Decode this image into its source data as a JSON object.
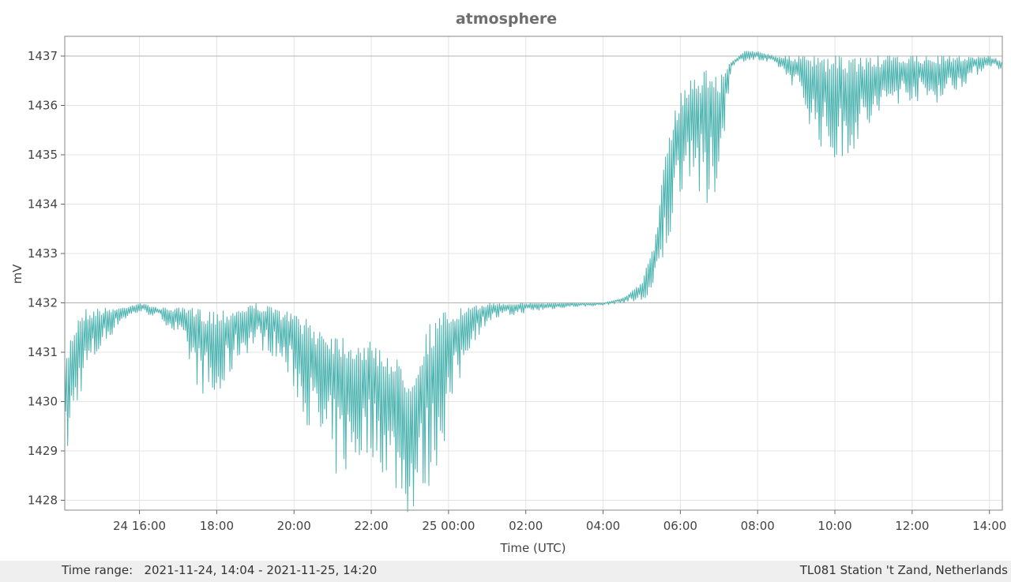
{
  "chart_data": {
    "type": "line",
    "title": "atmosphere",
    "xlabel": "Time (UTC)",
    "ylabel": "mV",
    "x_range": [
      "2021-11-24 14:04",
      "2021-11-25 14:20"
    ],
    "ylim": [
      1427.8,
      1437.4
    ],
    "grid": true,
    "line_color": "#4cb3b0",
    "x_ticks": [
      {
        "label": "24 16:00",
        "time": "2021-11-24 16:00"
      },
      {
        "label": "18:00",
        "time": "2021-11-24 18:00"
      },
      {
        "label": "20:00",
        "time": "2021-11-24 20:00"
      },
      {
        "label": "22:00",
        "time": "2021-11-24 22:00"
      },
      {
        "label": "25 00:00",
        "time": "2021-11-25 00:00"
      },
      {
        "label": "02:00",
        "time": "2021-11-25 02:00"
      },
      {
        "label": "04:00",
        "time": "2021-11-25 04:00"
      },
      {
        "label": "06:00",
        "time": "2021-11-25 06:00"
      },
      {
        "label": "08:00",
        "time": "2021-11-25 08:00"
      },
      {
        "label": "10:00",
        "time": "2021-11-25 10:00"
      },
      {
        "label": "12:00",
        "time": "2021-11-25 12:00"
      },
      {
        "label": "14:00",
        "time": "2021-11-25 14:00"
      }
    ],
    "y_ticks": [
      {
        "label": "1428",
        "value": 1428
      },
      {
        "label": "1429",
        "value": 1429
      },
      {
        "label": "1430",
        "value": 1430
      },
      {
        "label": "1431",
        "value": 1431
      },
      {
        "label": "1432",
        "value": 1432
      },
      {
        "label": "1433",
        "value": 1433
      },
      {
        "label": "1434",
        "value": 1434
      },
      {
        "label": "1435",
        "value": 1435
      },
      {
        "label": "1436",
        "value": 1436
      },
      {
        "label": "1437",
        "value": 1437
      }
    ],
    "reference_lines": [
      1432,
      1437
    ],
    "series": [
      {
        "envelope_times": [
          "2021-11-24 14:04",
          "2021-11-24 14:15",
          "2021-11-24 14:30",
          "2021-11-24 15:00",
          "2021-11-24 15:30",
          "2021-11-24 16:00",
          "2021-11-24 16:30",
          "2021-11-24 17:00",
          "2021-11-24 17:30",
          "2021-11-24 18:00",
          "2021-11-24 18:30",
          "2021-11-24 19:00",
          "2021-11-24 19:30",
          "2021-11-24 20:00",
          "2021-11-24 20:30",
          "2021-11-24 21:00",
          "2021-11-24 21:30",
          "2021-11-24 22:00",
          "2021-11-24 22:30",
          "2021-11-24 23:00",
          "2021-11-24 23:30",
          "2021-11-25 00:00",
          "2021-11-25 00:30",
          "2021-11-25 01:00",
          "2021-11-25 02:00",
          "2021-11-25 03:00",
          "2021-11-25 04:00",
          "2021-11-25 04:30",
          "2021-11-25 05:00",
          "2021-11-25 05:20",
          "2021-11-25 05:40",
          "2021-11-25 06:00",
          "2021-11-25 06:20",
          "2021-11-25 06:40",
          "2021-11-25 07:00",
          "2021-11-25 07:20",
          "2021-11-25 07:40",
          "2021-11-25 08:00",
          "2021-11-25 08:30",
          "2021-11-25 09:00",
          "2021-11-25 09:30",
          "2021-11-25 10:00",
          "2021-11-25 10:30",
          "2021-11-25 11:00",
          "2021-11-25 11:30",
          "2021-11-25 12:00",
          "2021-11-25 12:30",
          "2021-11-25 13:00",
          "2021-11-25 13:30",
          "2021-11-25 14:00",
          "2021-11-25 14:20"
        ],
        "envelope_upper": [
          1430.8,
          1431.5,
          1431.9,
          1431.9,
          1431.9,
          1432.0,
          1431.9,
          1431.9,
          1431.9,
          1431.9,
          1431.9,
          1432.0,
          1431.9,
          1431.8,
          1431.6,
          1431.5,
          1431.3,
          1431.2,
          1431.0,
          1430.6,
          1431.6,
          1431.9,
          1431.9,
          1432.0,
          1432.0,
          1432.0,
          1432.0,
          1432.1,
          1432.4,
          1433.3,
          1435.3,
          1436.3,
          1436.6,
          1436.8,
          1436.6,
          1436.9,
          1437.1,
          1437.1,
          1437.0,
          1437.0,
          1437.0,
          1437.0,
          1437.0,
          1437.0,
          1437.0,
          1437.0,
          1437.0,
          1437.0,
          1437.0,
          1437.0,
          1436.9
        ],
        "envelope_lower": [
          1428.6,
          1429.2,
          1430.2,
          1431.0,
          1431.6,
          1431.8,
          1431.7,
          1431.3,
          1430.3,
          1429.7,
          1430.8,
          1431.1,
          1430.9,
          1430.2,
          1429.2,
          1428.4,
          1428.5,
          1428.9,
          1428.3,
          1427.6,
          1428.2,
          1429.4,
          1431.0,
          1431.6,
          1431.8,
          1431.9,
          1431.95,
          1432.0,
          1432.0,
          1432.0,
          1433.0,
          1434.2,
          1434.7,
          1433.3,
          1434.5,
          1436.8,
          1436.9,
          1436.9,
          1436.8,
          1436.3,
          1435.3,
          1434.7,
          1435.1,
          1435.5,
          1436.0,
          1436.1,
          1436.0,
          1436.2,
          1436.5,
          1436.8,
          1436.7
        ]
      }
    ]
  },
  "footer": {
    "time_range": "Time range:   2021-11-24, 14:04 - 2021-11-25, 14:20",
    "station": "TL081 Station 't Zand, Netherlands"
  }
}
